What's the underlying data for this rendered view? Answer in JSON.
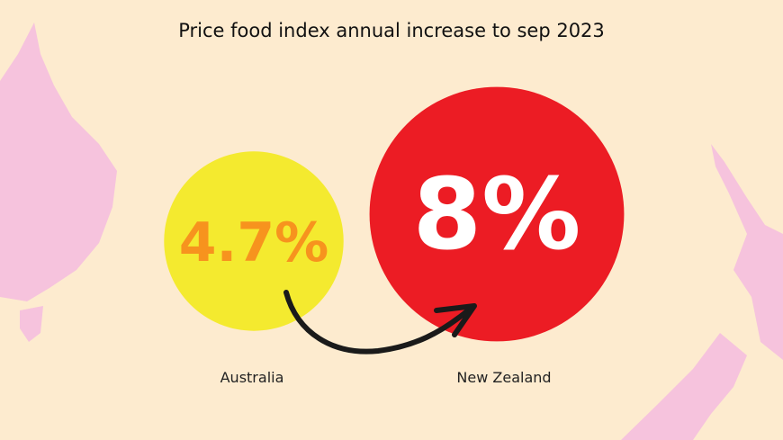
{
  "chart_data": {
    "type": "bar",
    "title": "Price food index annual increase to sep 2023",
    "categories": [
      "Australia",
      "New Zealand"
    ],
    "values": [
      4.7,
      8
    ],
    "value_labels": [
      "4.7%",
      "8%"
    ],
    "unit": "%",
    "colors": {
      "background": "#fdebcf",
      "map": "#f6c3dd",
      "australia_circle": "#f4ea2f",
      "australia_text": "#f7931e",
      "nz_circle": "#ec1c24",
      "nz_text": "#ffffff",
      "arrow": "#1a1a1a"
    },
    "annotation": "arrow from Australia to New Zealand"
  }
}
